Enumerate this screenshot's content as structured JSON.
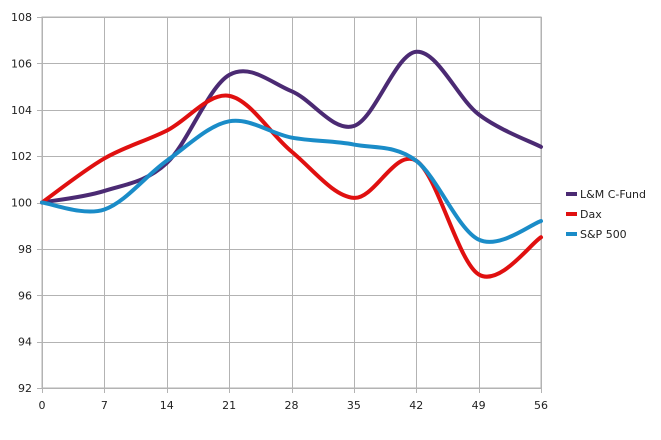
{
  "chart_data": {
    "type": "line",
    "title": "",
    "xlabel": "",
    "ylabel": "",
    "x": [
      0,
      7,
      14,
      21,
      28,
      35,
      42,
      49,
      56
    ],
    "xticks": [
      "0",
      "7",
      "14",
      "21",
      "28",
      "35",
      "42",
      "49",
      "56"
    ],
    "yticks": [
      "92",
      "94",
      "96",
      "98",
      "100",
      "102",
      "104",
      "106",
      "108"
    ],
    "xlim": [
      0,
      56
    ],
    "ylim": [
      92,
      108
    ],
    "grid": true,
    "legend_position": "right",
    "series": [
      {
        "name": "L&M C-Fund",
        "color": "#4b2a73",
        "values": [
          100.0,
          100.5,
          101.7,
          105.5,
          104.8,
          103.3,
          106.5,
          103.8,
          102.4
        ]
      },
      {
        "name": "Dax",
        "color": "#e01010",
        "values": [
          100.0,
          101.9,
          103.1,
          104.6,
          102.2,
          100.2,
          101.8,
          96.9,
          98.5
        ]
      },
      {
        "name": "S&P 500",
        "color": "#1a8cc8",
        "values": [
          100.0,
          99.7,
          101.8,
          103.5,
          102.8,
          102.5,
          101.8,
          98.4,
          99.2
        ]
      }
    ]
  }
}
